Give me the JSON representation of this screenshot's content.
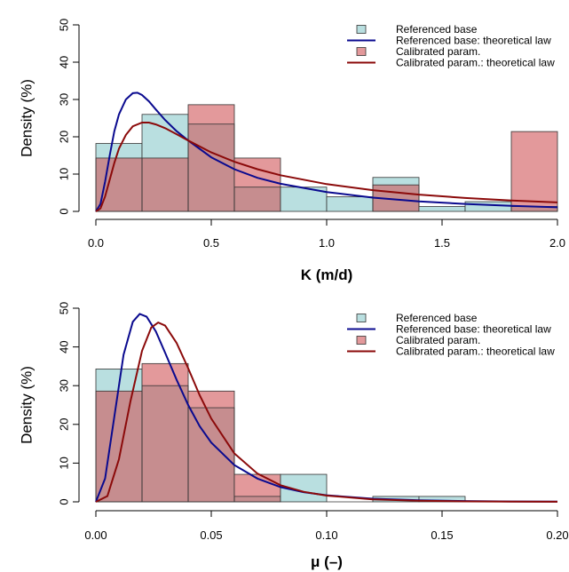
{
  "colors": {
    "ref_fill": "#b9dfe0",
    "cal_fill": "#e3999b",
    "overlap_fill": "#c68d8f",
    "ref_line": "#0a0a8f",
    "cal_line": "#8b0a0a",
    "edge": "#333333"
  },
  "chart_data": [
    {
      "type": "bar",
      "subtype": "histogram-with-density",
      "xlabel": "K (m/d)",
      "ylabel": "Density (%)",
      "xlim": [
        0,
        2
      ],
      "ylim": [
        0,
        50
      ],
      "x_ticks": [
        "0.0",
        "0.5",
        "1.0",
        "1.5",
        "2.0"
      ],
      "x_tick_values": [
        0,
        0.5,
        1,
        1.5,
        2
      ],
      "y_ticks": [
        "0",
        "10",
        "20",
        "30",
        "40",
        "50"
      ],
      "y_tick_values": [
        0,
        10,
        20,
        30,
        40,
        50
      ],
      "bin_edges": [
        0,
        0.2,
        0.4,
        0.6,
        0.8,
        1.0,
        1.2,
        1.4,
        1.6,
        1.8,
        2.0
      ],
      "legend": {
        "position": "top-right",
        "entries": [
          "Referenced base",
          "Referenced base: theoretical law",
          "Calibrated param.",
          "Calibrated param.: theoretical law"
        ]
      },
      "series": [
        {
          "name": "Referenced base",
          "kind": "histogram",
          "values": [
            18.2,
            26,
            23.4,
            6.5,
            6.5,
            3.9,
            9.1,
            1.3,
            2.6,
            1.3
          ]
        },
        {
          "name": "Calibrated param.",
          "kind": "histogram",
          "values": [
            14.3,
            14.3,
            28.6,
            14.3,
            0,
            0,
            7.1,
            0,
            0,
            21.4
          ]
        },
        {
          "name": "Referenced base: theoretical law",
          "kind": "line",
          "x": [
            0,
            0.02,
            0.04,
            0.06,
            0.08,
            0.1,
            0.13,
            0.16,
            0.18,
            0.2,
            0.23,
            0.26,
            0.3,
            0.35,
            0.4,
            0.5,
            0.6,
            0.7,
            0.8,
            1.0,
            1.2,
            1.4,
            1.6,
            1.8,
            2.0
          ],
          "y": [
            0,
            2,
            8,
            15,
            21.5,
            26,
            30,
            31.7,
            31.8,
            31.2,
            29.5,
            27.3,
            24.5,
            21.5,
            19,
            14.5,
            11.3,
            9,
            7.4,
            5.2,
            3.7,
            2.7,
            2,
            1.5,
            1.1
          ]
        },
        {
          "name": "Calibrated param.: theoretical law",
          "kind": "line",
          "x": [
            0,
            0.02,
            0.04,
            0.06,
            0.08,
            0.1,
            0.13,
            0.16,
            0.2,
            0.23,
            0.26,
            0.3,
            0.35,
            0.4,
            0.5,
            0.6,
            0.7,
            0.8,
            1.0,
            1.2,
            1.4,
            1.6,
            1.8,
            2.0
          ],
          "y": [
            0,
            0.8,
            4,
            8.5,
            13,
            16.8,
            20.5,
            22.8,
            23.8,
            23.8,
            23.3,
            22.3,
            20.7,
            19,
            15.8,
            13.3,
            11.3,
            9.7,
            7.3,
            5.7,
            4.5,
            3.6,
            2.9,
            2.4
          ]
        }
      ]
    },
    {
      "type": "bar",
      "subtype": "histogram-with-density",
      "xlabel": "μ (–)",
      "ylabel": "Density (%)",
      "xlim": [
        0,
        0.2
      ],
      "ylim": [
        0,
        50
      ],
      "x_ticks": [
        "0.00",
        "0.05",
        "0.10",
        "0.15",
        "0.20"
      ],
      "x_tick_values": [
        0,
        0.05,
        0.1,
        0.15,
        0.2
      ],
      "y_ticks": [
        "0",
        "10",
        "20",
        "30",
        "40",
        "50"
      ],
      "y_tick_values": [
        0,
        10,
        20,
        30,
        40,
        50
      ],
      "bin_edges": [
        0,
        0.02,
        0.04,
        0.06,
        0.08,
        0.1,
        0.12,
        0.14,
        0.16,
        0.18,
        0.2
      ],
      "legend": {
        "position": "top-right",
        "entries": [
          "Referenced base",
          "Referenced base: theoretical law",
          "Calibrated param.",
          "Calibrated param.: theoretical law"
        ]
      },
      "series": [
        {
          "name": "Referenced base",
          "kind": "histogram",
          "values": [
            34.3,
            30,
            24.3,
            1.4,
            7.1,
            0,
            1.4,
            1.4,
            0,
            0
          ]
        },
        {
          "name": "Calibrated param.",
          "kind": "histogram",
          "values": [
            28.6,
            35.7,
            28.6,
            7.1,
            0,
            0,
            0,
            0,
            0,
            0
          ]
        },
        {
          "name": "Referenced base: theoretical law",
          "kind": "line",
          "x": [
            0,
            0.004,
            0.008,
            0.012,
            0.016,
            0.019,
            0.022,
            0.026,
            0.03,
            0.035,
            0.04,
            0.045,
            0.05,
            0.06,
            0.07,
            0.08,
            0.09,
            0.1,
            0.12,
            0.14,
            0.16,
            0.18,
            0.2
          ],
          "y": [
            0,
            6,
            22,
            38,
            46.5,
            48.5,
            47.8,
            44,
            38.5,
            31.5,
            25,
            19.5,
            15.3,
            9.5,
            6,
            3.8,
            2.5,
            1.7,
            0.8,
            0.4,
            0.2,
            0.1,
            0.05
          ]
        },
        {
          "name": "Calibrated param.: theoretical law",
          "kind": "line",
          "x": [
            0,
            0.005,
            0.01,
            0.015,
            0.02,
            0.024,
            0.027,
            0.03,
            0.035,
            0.04,
            0.045,
            0.05,
            0.06,
            0.07,
            0.08,
            0.09,
            0.1,
            0.12,
            0.14,
            0.16,
            0.18,
            0.2
          ],
          "y": [
            0,
            1.5,
            11,
            26,
            39,
            45,
            46.3,
            45.5,
            41,
            34.5,
            27.5,
            21.5,
            12.5,
            7.3,
            4.3,
            2.6,
            1.6,
            0.65,
            0.3,
            0.12,
            0.05,
            0.02
          ]
        }
      ]
    }
  ]
}
